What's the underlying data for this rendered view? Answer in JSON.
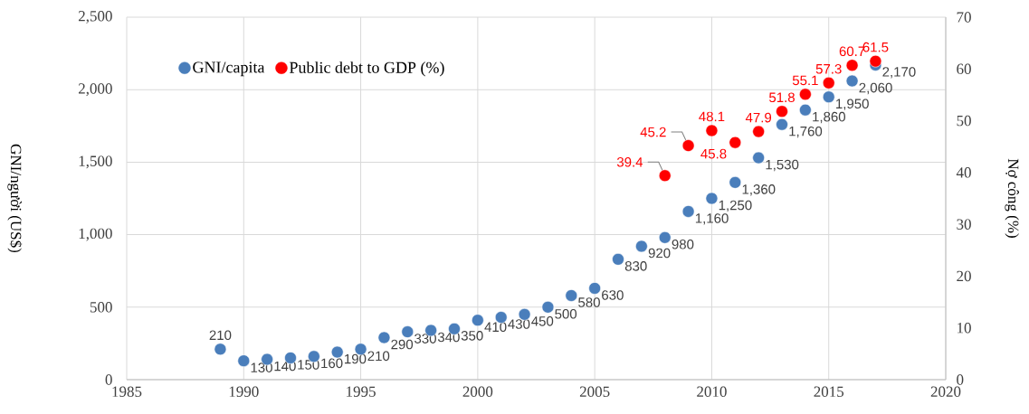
{
  "chart_data": {
    "type": "scatter",
    "xlabel": null,
    "ylabel": "GNI/người (US$)",
    "y2label": "Nợ công (%)",
    "x": [
      1989,
      1990,
      1991,
      1992,
      1993,
      1994,
      1995,
      1996,
      1997,
      1998,
      1999,
      2000,
      2001,
      2002,
      2003,
      2004,
      2005,
      2006,
      2007,
      2008,
      2009,
      2010,
      2011,
      2012,
      2013,
      2014,
      2015,
      2016,
      2017
    ],
    "series": [
      {
        "name": "GNI/capita",
        "color": "#4a7ebb",
        "values": [
          210,
          130,
          140,
          150,
          160,
          190,
          210,
          290,
          330,
          340,
          350,
          410,
          430,
          450,
          500,
          580,
          630,
          830,
          920,
          980,
          1160,
          1250,
          1360,
          1530,
          1760,
          1860,
          1950,
          2060,
          2170
        ],
        "value_labels": [
          "210",
          "130",
          "140",
          "150",
          "160",
          "190",
          "210",
          "290",
          "330",
          "340",
          "350",
          "410",
          "430",
          "450",
          "500",
          "580",
          "630",
          "830",
          "920",
          "980",
          "1,160",
          "1,250",
          "1,360",
          "1,530",
          "1,760",
          "1,860",
          "1,950",
          "2,060",
          "2,170"
        ]
      },
      {
        "name": "Public debt to GDP (%)",
        "color": "#ff0000",
        "axis": "y2",
        "x": [
          2008,
          2009,
          2010,
          2011,
          2012,
          2013,
          2014,
          2015,
          2016,
          2017
        ],
        "values": [
          39.4,
          45.2,
          48.1,
          45.8,
          47.9,
          51.8,
          55.1,
          57.3,
          60.7,
          61.5
        ],
        "value_labels": [
          "39.4",
          "45.2",
          "48.1",
          "45.8",
          "47.9",
          "51.8",
          "55.1",
          "57.3",
          "60.7",
          "61.5"
        ]
      }
    ],
    "xlim": [
      1985,
      2020
    ],
    "xticks": [
      1985,
      1990,
      1995,
      2000,
      2005,
      2010,
      2015,
      2020
    ],
    "ylim": [
      0,
      2500
    ],
    "yticks": [
      0,
      500,
      {
        "value": 1000,
        "label": "1,000"
      },
      {
        "value": 1500,
        "label": "1,500"
      },
      {
        "value": 2000,
        "label": "2,000"
      },
      {
        "value": 2500,
        "label": "2,500"
      }
    ],
    "y2lim": [
      0,
      70
    ],
    "y2ticks": [
      0,
      10,
      20,
      30,
      40,
      50,
      60,
      70
    ],
    "grid": true,
    "legend": "top left",
    "marker": "circle"
  }
}
